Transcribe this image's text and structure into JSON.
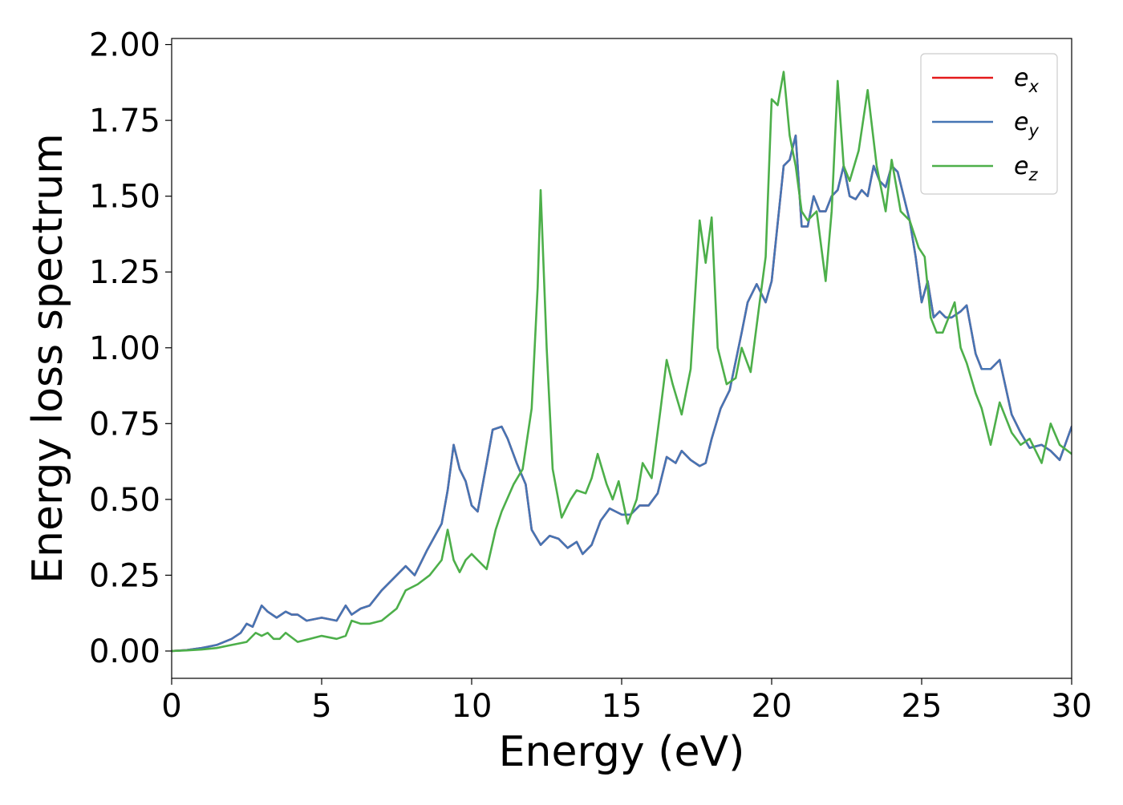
{
  "chart_data": {
    "type": "line",
    "title": "",
    "xlabel": "Energy (eV)",
    "ylabel": "Energy loss spectrum",
    "xlim": [
      0,
      30
    ],
    "ylim": [
      -0.09,
      2.02
    ],
    "xticks": [
      0,
      5,
      10,
      15,
      20,
      25,
      30
    ],
    "xtick_labels": [
      "0",
      "5",
      "10",
      "15",
      "20",
      "25",
      "30"
    ],
    "yticks": [
      0,
      0.25,
      0.5,
      0.75,
      1.0,
      1.25,
      1.5,
      1.75,
      2.0
    ],
    "ytick_labels": [
      "0.00",
      "0.25",
      "0.50",
      "0.75",
      "1.00",
      "1.25",
      "1.50",
      "1.75",
      "2.00"
    ],
    "grid": false,
    "legend_position": "top-right",
    "series": [
      {
        "name": "e_x",
        "label_base": "e",
        "label_sub": "x",
        "color": "#e41a1c",
        "x": [
          0,
          0.5,
          1.0,
          1.5,
          2.0,
          2.3,
          2.5,
          2.7,
          3.0,
          3.2,
          3.5,
          3.8,
          4.0,
          4.2,
          4.5,
          5.0,
          5.5,
          5.8,
          6.0,
          6.3,
          6.6,
          7.0,
          7.5,
          7.8,
          8.1,
          8.5,
          9.0,
          9.2,
          9.4,
          9.6,
          9.8,
          10.0,
          10.2,
          10.5,
          10.7,
          11.0,
          11.2,
          11.5,
          11.8,
          12.0,
          12.3,
          12.6,
          12.9,
          13.2,
          13.5,
          13.7,
          14.0,
          14.3,
          14.6,
          15.0,
          15.3,
          15.6,
          15.9,
          16.2,
          16.5,
          16.8,
          17.0,
          17.3,
          17.6,
          17.8,
          18.0,
          18.3,
          18.6,
          19.0,
          19.2,
          19.5,
          19.8,
          20.0,
          20.4,
          20.6,
          20.8,
          21.0,
          21.2,
          21.4,
          21.6,
          21.8,
          22.0,
          22.2,
          22.4,
          22.6,
          22.8,
          23.0,
          23.2,
          23.4,
          23.6,
          23.8,
          24.0,
          24.2,
          24.4,
          24.6,
          24.8,
          25.0,
          25.2,
          25.4,
          25.6,
          25.8,
          26.0,
          26.3,
          26.5,
          26.8,
          27.0,
          27.3,
          27.6,
          28.0,
          28.3,
          28.6,
          29.0,
          29.3,
          29.6,
          30.0
        ],
        "values": [
          0.0,
          0.003,
          0.01,
          0.02,
          0.04,
          0.06,
          0.09,
          0.08,
          0.15,
          0.13,
          0.11,
          0.13,
          0.12,
          0.12,
          0.1,
          0.11,
          0.1,
          0.15,
          0.12,
          0.14,
          0.15,
          0.2,
          0.25,
          0.28,
          0.25,
          0.33,
          0.42,
          0.53,
          0.68,
          0.6,
          0.56,
          0.48,
          0.46,
          0.62,
          0.73,
          0.74,
          0.7,
          0.62,
          0.55,
          0.4,
          0.35,
          0.38,
          0.37,
          0.34,
          0.36,
          0.32,
          0.35,
          0.43,
          0.47,
          0.45,
          0.45,
          0.48,
          0.48,
          0.52,
          0.64,
          0.62,
          0.66,
          0.63,
          0.61,
          0.62,
          0.7,
          0.8,
          0.86,
          1.05,
          1.15,
          1.21,
          1.15,
          1.22,
          1.6,
          1.62,
          1.7,
          1.4,
          1.4,
          1.5,
          1.45,
          1.45,
          1.5,
          1.52,
          1.6,
          1.5,
          1.49,
          1.52,
          1.5,
          1.6,
          1.55,
          1.53,
          1.6,
          1.58,
          1.5,
          1.42,
          1.3,
          1.15,
          1.22,
          1.1,
          1.12,
          1.1,
          1.1,
          1.12,
          1.14,
          0.98,
          0.93,
          0.93,
          0.96,
          0.78,
          0.72,
          0.67,
          0.68,
          0.66,
          0.63,
          0.74
        ]
      },
      {
        "name": "e_y",
        "label_base": "e",
        "label_sub": "y",
        "color": "#4575b4",
        "x": [
          0,
          0.5,
          1.0,
          1.5,
          2.0,
          2.3,
          2.5,
          2.7,
          3.0,
          3.2,
          3.5,
          3.8,
          4.0,
          4.2,
          4.5,
          5.0,
          5.5,
          5.8,
          6.0,
          6.3,
          6.6,
          7.0,
          7.5,
          7.8,
          8.1,
          8.5,
          9.0,
          9.2,
          9.4,
          9.6,
          9.8,
          10.0,
          10.2,
          10.5,
          10.7,
          11.0,
          11.2,
          11.5,
          11.8,
          12.0,
          12.3,
          12.6,
          12.9,
          13.2,
          13.5,
          13.7,
          14.0,
          14.3,
          14.6,
          15.0,
          15.3,
          15.6,
          15.9,
          16.2,
          16.5,
          16.8,
          17.0,
          17.3,
          17.6,
          17.8,
          18.0,
          18.3,
          18.6,
          19.0,
          19.2,
          19.5,
          19.8,
          20.0,
          20.4,
          20.6,
          20.8,
          21.0,
          21.2,
          21.4,
          21.6,
          21.8,
          22.0,
          22.2,
          22.4,
          22.6,
          22.8,
          23.0,
          23.2,
          23.4,
          23.6,
          23.8,
          24.0,
          24.2,
          24.4,
          24.6,
          24.8,
          25.0,
          25.2,
          25.4,
          25.6,
          25.8,
          26.0,
          26.3,
          26.5,
          26.8,
          27.0,
          27.3,
          27.6,
          28.0,
          28.3,
          28.6,
          29.0,
          29.3,
          29.6,
          30.0
        ],
        "values": [
          0.0,
          0.003,
          0.01,
          0.02,
          0.04,
          0.06,
          0.09,
          0.08,
          0.15,
          0.13,
          0.11,
          0.13,
          0.12,
          0.12,
          0.1,
          0.11,
          0.1,
          0.15,
          0.12,
          0.14,
          0.15,
          0.2,
          0.25,
          0.28,
          0.25,
          0.33,
          0.42,
          0.53,
          0.68,
          0.6,
          0.56,
          0.48,
          0.46,
          0.62,
          0.73,
          0.74,
          0.7,
          0.62,
          0.55,
          0.4,
          0.35,
          0.38,
          0.37,
          0.34,
          0.36,
          0.32,
          0.35,
          0.43,
          0.47,
          0.45,
          0.45,
          0.48,
          0.48,
          0.52,
          0.64,
          0.62,
          0.66,
          0.63,
          0.61,
          0.62,
          0.7,
          0.8,
          0.86,
          1.05,
          1.15,
          1.21,
          1.15,
          1.22,
          1.6,
          1.62,
          1.7,
          1.4,
          1.4,
          1.5,
          1.45,
          1.45,
          1.5,
          1.52,
          1.6,
          1.5,
          1.49,
          1.52,
          1.5,
          1.6,
          1.55,
          1.53,
          1.6,
          1.58,
          1.5,
          1.42,
          1.3,
          1.15,
          1.22,
          1.1,
          1.12,
          1.1,
          1.1,
          1.12,
          1.14,
          0.98,
          0.93,
          0.93,
          0.96,
          0.78,
          0.72,
          0.67,
          0.68,
          0.66,
          0.63,
          0.74
        ]
      },
      {
        "name": "e_z",
        "label_base": "e",
        "label_sub": "z",
        "color": "#4daf4a",
        "x": [
          0,
          0.5,
          1.0,
          1.5,
          2.0,
          2.5,
          2.8,
          3.0,
          3.2,
          3.4,
          3.6,
          3.8,
          4.2,
          4.6,
          5.0,
          5.5,
          5.8,
          6.0,
          6.3,
          6.6,
          7.0,
          7.5,
          7.8,
          8.2,
          8.6,
          9.0,
          9.2,
          9.4,
          9.6,
          9.8,
          10.0,
          10.2,
          10.5,
          10.8,
          11.0,
          11.4,
          11.7,
          12.0,
          12.2,
          12.3,
          12.5,
          12.7,
          13.0,
          13.3,
          13.5,
          13.8,
          14.0,
          14.2,
          14.5,
          14.7,
          14.9,
          15.2,
          15.5,
          15.7,
          16.0,
          16.3,
          16.5,
          16.7,
          17.0,
          17.3,
          17.6,
          17.8,
          18.0,
          18.2,
          18.5,
          18.8,
          19.0,
          19.3,
          19.6,
          19.8,
          20.0,
          20.2,
          20.4,
          20.6,
          20.8,
          21.0,
          21.2,
          21.5,
          21.8,
          22.0,
          22.2,
          22.4,
          22.6,
          22.9,
          23.2,
          23.5,
          23.8,
          24.0,
          24.3,
          24.6,
          24.9,
          25.1,
          25.3,
          25.5,
          25.7,
          25.9,
          26.1,
          26.3,
          26.5,
          26.8,
          27.0,
          27.3,
          27.6,
          28.0,
          28.3,
          28.6,
          29.0,
          29.3,
          29.6,
          30.0
        ],
        "values": [
          0.0,
          0.002,
          0.005,
          0.01,
          0.02,
          0.03,
          0.06,
          0.05,
          0.06,
          0.04,
          0.04,
          0.06,
          0.03,
          0.04,
          0.05,
          0.04,
          0.05,
          0.1,
          0.09,
          0.09,
          0.1,
          0.14,
          0.2,
          0.22,
          0.25,
          0.3,
          0.4,
          0.3,
          0.26,
          0.3,
          0.32,
          0.3,
          0.27,
          0.4,
          0.46,
          0.55,
          0.6,
          0.8,
          1.2,
          1.52,
          1.0,
          0.6,
          0.44,
          0.5,
          0.53,
          0.52,
          0.57,
          0.65,
          0.55,
          0.5,
          0.56,
          0.42,
          0.5,
          0.62,
          0.57,
          0.8,
          0.96,
          0.88,
          0.78,
          0.93,
          1.42,
          1.28,
          1.43,
          1.0,
          0.88,
          0.9,
          1.0,
          0.92,
          1.15,
          1.3,
          1.82,
          1.8,
          1.91,
          1.7,
          1.6,
          1.45,
          1.42,
          1.45,
          1.22,
          1.45,
          1.88,
          1.6,
          1.55,
          1.65,
          1.85,
          1.6,
          1.45,
          1.62,
          1.45,
          1.42,
          1.33,
          1.3,
          1.1,
          1.05,
          1.05,
          1.1,
          1.15,
          1.0,
          0.95,
          0.85,
          0.8,
          0.68,
          0.82,
          0.72,
          0.68,
          0.7,
          0.62,
          0.75,
          0.68,
          0.65
        ]
      }
    ]
  }
}
